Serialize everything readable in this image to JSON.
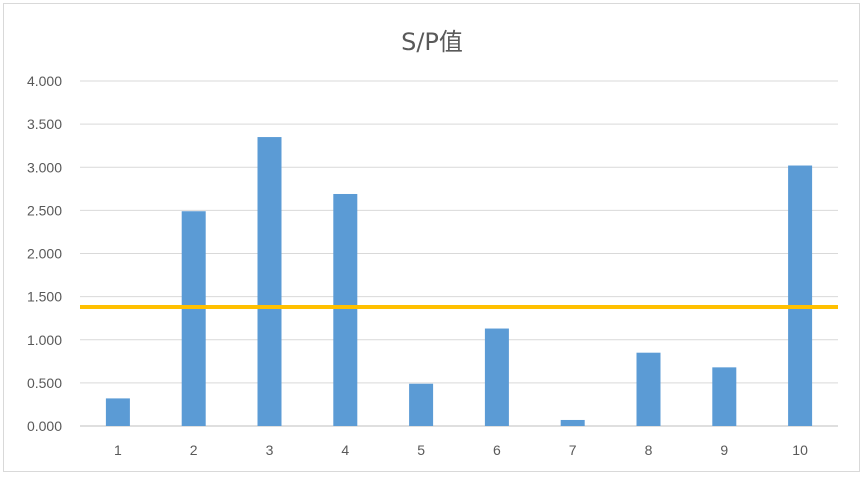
{
  "chart_data": {
    "type": "bar",
    "title": "S/P值",
    "xlabel": "",
    "ylabel": "",
    "categories": [
      "1",
      "2",
      "3",
      "4",
      "5",
      "6",
      "7",
      "8",
      "9",
      "10"
    ],
    "series": [
      {
        "values": [
          0.32,
          2.49,
          3.35,
          2.69,
          0.49,
          1.13,
          0.07,
          0.85,
          0.68,
          3.02
        ],
        "color": "#5b9bd5"
      }
    ],
    "reference_line": {
      "value": 1.38,
      "color": "#ffc000"
    },
    "ylim": [
      0,
      4
    ],
    "yticks": [
      "0.000",
      "0.500",
      "1.000",
      "1.500",
      "2.000",
      "2.500",
      "3.000",
      "3.500",
      "4.000"
    ],
    "ytick_values": [
      0,
      0.5,
      1,
      1.5,
      2,
      2.5,
      3,
      3.5,
      4
    ],
    "grid": true,
    "legend": "none"
  }
}
